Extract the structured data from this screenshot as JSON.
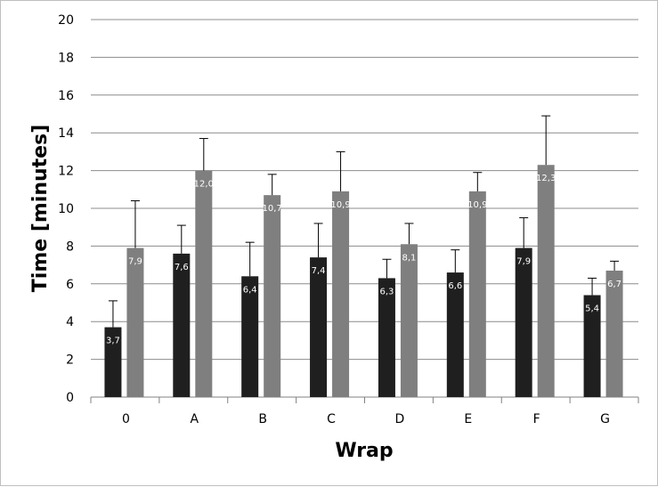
{
  "chart_data": {
    "type": "bar",
    "xlabel": "Wrap",
    "ylabel": "Time [minutes]",
    "ylim": [
      0,
      20
    ],
    "yticks": [
      0,
      2,
      4,
      6,
      8,
      10,
      12,
      14,
      16,
      18,
      20
    ],
    "grid": true,
    "legend": "none",
    "categories": [
      "0",
      "A",
      "B",
      "C",
      "D",
      "E",
      "F",
      "G"
    ],
    "series": [
      {
        "color": "#1f1f1f",
        "values": [
          3.7,
          7.6,
          6.4,
          7.4,
          6.3,
          6.6,
          7.9,
          5.4
        ],
        "labels": [
          "3,7",
          "7,6",
          "6,4",
          "7,4",
          "6,3",
          "6,6",
          "7,9",
          "5,4"
        ],
        "error": [
          1.4,
          1.5,
          1.8,
          1.8,
          1.0,
          1.2,
          1.6,
          0.9
        ]
      },
      {
        "color": "#7f7f7f",
        "values": [
          7.9,
          12.0,
          10.7,
          10.9,
          8.1,
          10.9,
          12.3,
          6.7
        ],
        "labels": [
          "7,9",
          "12,0",
          "10,7",
          "10,9",
          "8,1",
          "10,9",
          "12,3",
          "6,7"
        ],
        "error": [
          2.5,
          1.7,
          1.1,
          2.1,
          1.1,
          1.0,
          2.6,
          0.5
        ]
      }
    ]
  }
}
